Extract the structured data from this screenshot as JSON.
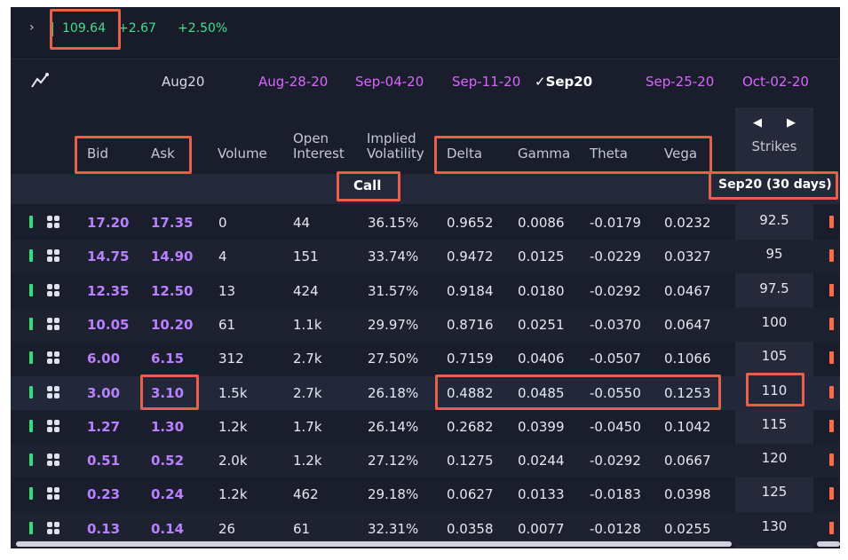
{
  "ticker": {
    "price": "109.64",
    "change": "+2.67",
    "change_pct": "+2.50%"
  },
  "expirations": [
    {
      "label": "Aug20",
      "style": "plain",
      "selected": false
    },
    {
      "label": "Aug-28-20",
      "style": "weekly",
      "selected": false
    },
    {
      "label": "Sep-04-20",
      "style": "weekly",
      "selected": false
    },
    {
      "label": "Sep-11-20",
      "style": "weekly",
      "selected": false
    },
    {
      "label": "Sep20",
      "style": "plain",
      "selected": true
    },
    {
      "label": "Sep-25-20",
      "style": "weekly",
      "selected": false
    },
    {
      "label": "Oct-02-20",
      "style": "weekly",
      "selected": false
    }
  ],
  "headers": {
    "bid": "Bid",
    "ask": "Ask",
    "volume": "Volume",
    "open_interest_1": "Open",
    "open_interest_2": "Interest",
    "iv_1": "Implied",
    "iv_2": "Volatility",
    "delta": "Delta",
    "gamma": "Gamma",
    "theta": "Theta",
    "vega": "Vega",
    "strikes": "Strikes"
  },
  "section": {
    "call_label": "Call",
    "expiry_label": "Sep20 (30 days)"
  },
  "rows": [
    {
      "bid": "17.20",
      "ask": "17.35",
      "volume": "0",
      "oi": "44",
      "iv": "36.15%",
      "delta": "0.9652",
      "gamma": "0.0086",
      "theta": "-0.0179",
      "vega": "0.0232",
      "strike": "92.5"
    },
    {
      "bid": "14.75",
      "ask": "14.90",
      "volume": "4",
      "oi": "151",
      "iv": "33.74%",
      "delta": "0.9472",
      "gamma": "0.0125",
      "theta": "-0.0229",
      "vega": "0.0327",
      "strike": "95"
    },
    {
      "bid": "12.35",
      "ask": "12.50",
      "volume": "13",
      "oi": "424",
      "iv": "31.57%",
      "delta": "0.9184",
      "gamma": "0.0180",
      "theta": "-0.0292",
      "vega": "0.0467",
      "strike": "97.5"
    },
    {
      "bid": "10.05",
      "ask": "10.20",
      "volume": "61",
      "oi": "1.1k",
      "iv": "29.97%",
      "delta": "0.8716",
      "gamma": "0.0251",
      "theta": "-0.0370",
      "vega": "0.0647",
      "strike": "100"
    },
    {
      "bid": "6.00",
      "ask": "6.15",
      "volume": "312",
      "oi": "2.7k",
      "iv": "27.50%",
      "delta": "0.7159",
      "gamma": "0.0406",
      "theta": "-0.0507",
      "vega": "0.1066",
      "strike": "105"
    },
    {
      "bid": "3.00",
      "ask": "3.10",
      "volume": "1.5k",
      "oi": "2.7k",
      "iv": "26.18%",
      "delta": "0.4882",
      "gamma": "0.0485",
      "theta": "-0.0550",
      "vega": "0.1253",
      "strike": "110"
    },
    {
      "bid": "1.27",
      "ask": "1.30",
      "volume": "1.2k",
      "oi": "1.7k",
      "iv": "26.14%",
      "delta": "0.2682",
      "gamma": "0.0399",
      "theta": "-0.0450",
      "vega": "0.1042",
      "strike": "115"
    },
    {
      "bid": "0.51",
      "ask": "0.52",
      "volume": "2.0k",
      "oi": "1.2k",
      "iv": "27.12%",
      "delta": "0.1275",
      "gamma": "0.0244",
      "theta": "-0.0292",
      "vega": "0.0667",
      "strike": "120"
    },
    {
      "bid": "0.23",
      "ask": "0.24",
      "volume": "1.2k",
      "oi": "462",
      "iv": "29.18%",
      "delta": "0.0627",
      "gamma": "0.0133",
      "theta": "-0.0183",
      "vega": "0.0398",
      "strike": "125"
    },
    {
      "bid": "0.13",
      "ask": "0.14",
      "volume": "26",
      "oi": "61",
      "iv": "32.31%",
      "delta": "0.0358",
      "gamma": "0.0077",
      "theta": "-0.0128",
      "vega": "0.0255",
      "strike": "130"
    }
  ],
  "colors": {
    "background": "#1a1d2c",
    "bid_ask": "#b980ff",
    "up": "#3ee08a",
    "weekly_date": "#d966ff",
    "annotation": "#e8604a",
    "put_marker": "#ff6b47"
  },
  "icons": {
    "expand": "chevron-right-icon",
    "chart": "chart-line-icon",
    "row": "grid-icon",
    "prev": "arrow-left-icon",
    "next": "arrow-right-icon"
  }
}
